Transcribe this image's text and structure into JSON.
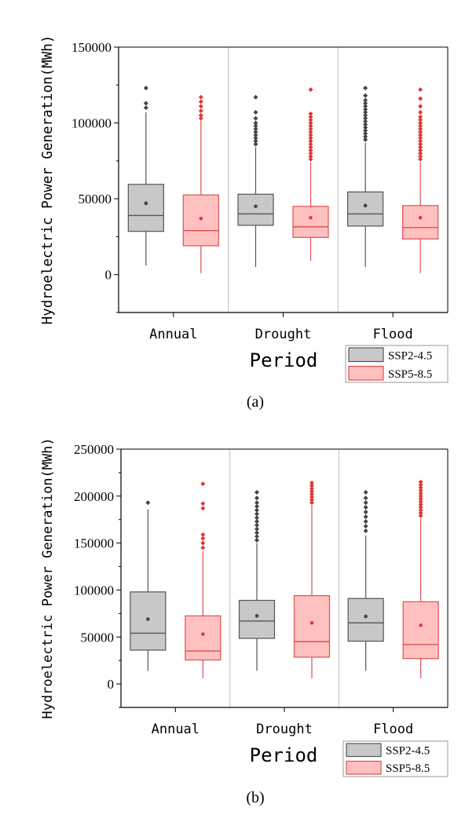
{
  "chart_data": [
    {
      "type": "box",
      "caption": "(a)",
      "xlabel": "Period",
      "ylabel": "Hydroelectric Power Generation(MWh)",
      "ylim": [
        -25000,
        150000
      ],
      "yticks": [
        0,
        50000,
        100000,
        150000
      ],
      "categories": [
        "Annual",
        "Drought",
        "Flood"
      ],
      "series": [
        {
          "name": "SSP2-4.5",
          "color": "#c8c8c8",
          "edge": "#555555",
          "outlier_color": "#444444",
          "boxes": [
            {
              "min": 6000,
              "q1": 28500,
              "median": 39000,
              "q3": 59500,
              "max": 107000,
              "mean": 47000,
              "outliers": [
                110000,
                113000,
                123000
              ]
            },
            {
              "min": 5000,
              "q1": 32500,
              "median": 40000,
              "q3": 53000,
              "max": 84000,
              "mean": 45000,
              "outliers": [
                86000,
                88000,
                90000,
                92000,
                94000,
                96000,
                98000,
                100000,
                103000,
                107000,
                117000
              ]
            },
            {
              "min": 5000,
              "q1": 32000,
              "median": 40000,
              "q3": 54500,
              "max": 87000,
              "mean": 45500,
              "outliers": [
                89000,
                91000,
                93000,
                95000,
                97000,
                99000,
                101000,
                103000,
                105000,
                107000,
                109000,
                111000,
                113000,
                115000,
                118000,
                123000
              ]
            }
          ]
        },
        {
          "name": "SSP5-8.5",
          "color": "#ffc0c0",
          "edge": "#e05050",
          "outlier_color": "#e03838",
          "boxes": [
            {
              "min": 1000,
              "q1": 19000,
              "median": 29000,
              "q3": 52500,
              "max": 102000,
              "mean": 37000,
              "outliers": [
                103000,
                105000,
                108000,
                111000,
                114000,
                117000
              ]
            },
            {
              "min": 9000,
              "q1": 24500,
              "median": 31500,
              "q3": 45000,
              "max": 74000,
              "mean": 37500,
              "outliers": [
                76000,
                78000,
                80000,
                82000,
                84000,
                86000,
                88000,
                90000,
                92000,
                94000,
                96000,
                98000,
                100000,
                102000,
                104000,
                106000,
                122000
              ]
            },
            {
              "min": 1000,
              "q1": 23500,
              "median": 31000,
              "q3": 45500,
              "max": 74000,
              "mean": 37500,
              "outliers": [
                76000,
                78000,
                80000,
                82000,
                84000,
                86000,
                88000,
                90000,
                92000,
                94000,
                96000,
                98000,
                100000,
                102000,
                104000,
                107000,
                111000,
                116000,
                122000
              ]
            }
          ]
        }
      ],
      "legend_position": "bottom-right"
    },
    {
      "type": "box",
      "caption": "(b)",
      "xlabel": "Period",
      "ylabel": "Hydroelectric Power Generation(MWh)",
      "ylim": [
        -25000,
        250000
      ],
      "yticks": [
        0,
        50000,
        100000,
        150000,
        200000,
        250000
      ],
      "categories": [
        "Annual",
        "Drought",
        "Flood"
      ],
      "series": [
        {
          "name": "SSP2-4.5",
          "color": "#c8c8c8",
          "edge": "#555555",
          "outlier_color": "#444444",
          "boxes": [
            {
              "min": 14000,
              "q1": 36000,
              "median": 54000,
              "q3": 98000,
              "max": 186000,
              "mean": 69000,
              "outliers": [
                193000
              ]
            },
            {
              "min": 14000,
              "q1": 48500,
              "median": 67000,
              "q3": 89000,
              "max": 150000,
              "mean": 72500,
              "outliers": [
                153000,
                157000,
                161000,
                165000,
                169000,
                173000,
                177000,
                181000,
                185000,
                189000,
                193000,
                198000,
                204000
              ]
            },
            {
              "min": 14000,
              "q1": 45500,
              "median": 65000,
              "q3": 91000,
              "max": 158000,
              "mean": 72000,
              "outliers": [
                163000,
                168000,
                173000,
                178000,
                183000,
                188000,
                193000,
                198000,
                204000
              ]
            }
          ]
        },
        {
          "name": "SSP5-8.5",
          "color": "#ffc0c0",
          "edge": "#e05050",
          "outlier_color": "#e03838",
          "boxes": [
            {
              "min": 6000,
              "q1": 25500,
              "median": 35000,
              "q3": 72500,
              "max": 141000,
              "mean": 53000,
              "outliers": [
                145000,
                150000,
                155000,
                159000,
                187000,
                192000,
                213000
              ]
            },
            {
              "min": 6000,
              "q1": 28500,
              "median": 45000,
              "q3": 94000,
              "max": 190000,
              "mean": 65000,
              "outliers": [
                193000,
                196000,
                199000,
                202000,
                205000,
                208000,
                211000,
                214000
              ]
            },
            {
              "min": 6000,
              "q1": 27000,
              "median": 42000,
              "q3": 87500,
              "max": 176000,
              "mean": 62500,
              "outliers": [
                179000,
                182000,
                185000,
                188000,
                191000,
                194000,
                197000,
                200000,
                203000,
                206000,
                209000,
                212000,
                215000
              ]
            }
          ]
        }
      ],
      "legend_position": "bottom-right"
    }
  ]
}
